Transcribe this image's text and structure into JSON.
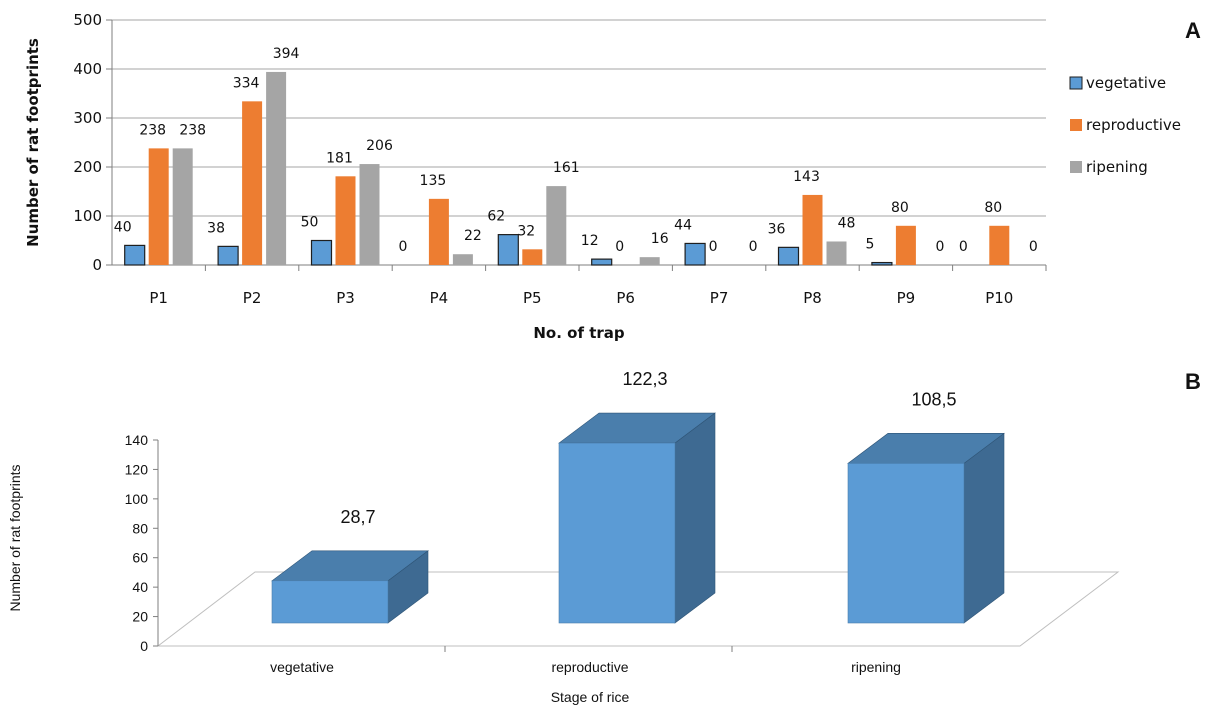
{
  "chart_data": [
    {
      "panel": "A",
      "type": "bar",
      "title": "",
      "xlabel": "No. of trap",
      "ylabel": "Number of rat footprints",
      "ylim": [
        0,
        500
      ],
      "yticks": [
        0,
        100,
        200,
        300,
        400,
        500
      ],
      "grid": true,
      "legend": "right",
      "categories": [
        "P1",
        "P2",
        "P3",
        "P4",
        "P5",
        "P6",
        "P7",
        "P8",
        "P9",
        "P10"
      ],
      "series": [
        {
          "name": "vegetative",
          "color": "#5b9bd5",
          "values": [
            40,
            38,
            50,
            0,
            62,
            12,
            44,
            36,
            5,
            0
          ]
        },
        {
          "name": "reproductive",
          "color": "#ed7d31",
          "values": [
            238,
            334,
            181,
            135,
            32,
            0,
            0,
            143,
            80,
            80
          ]
        },
        {
          "name": "ripening",
          "color": "#a5a5a5",
          "values": [
            238,
            394,
            206,
            22,
            161,
            16,
            0,
            48,
            0,
            0
          ]
        }
      ]
    },
    {
      "panel": "B",
      "type": "bar",
      "title": "",
      "xlabel": "Stage of rice",
      "ylabel": "Number of rat footprints",
      "ylim": [
        0,
        140
      ],
      "yticks": [
        0,
        20,
        40,
        60,
        80,
        100,
        120,
        140
      ],
      "grid": false,
      "legend": "none",
      "categories": [
        "vegetative",
        "reproductive",
        "ripening"
      ],
      "values": [
        28.7,
        122.3,
        108.5
      ],
      "value_labels": [
        "28,7",
        "122,3",
        "108,5"
      ],
      "color": "#5b9bd5"
    }
  ]
}
